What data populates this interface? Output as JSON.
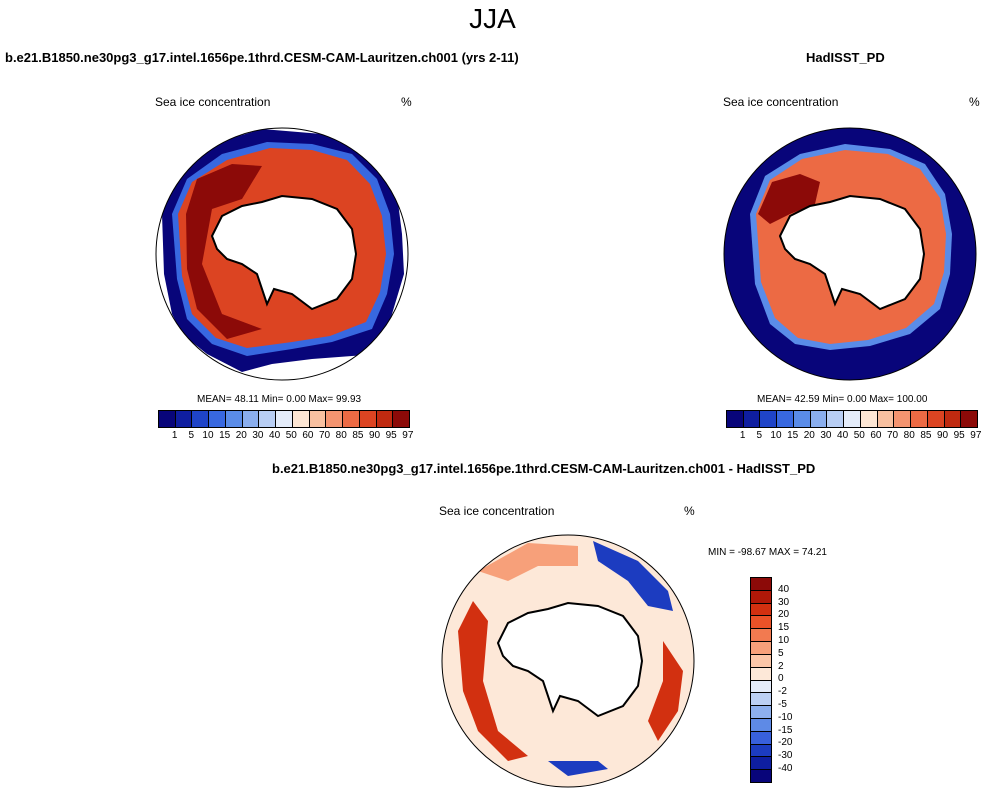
{
  "title": "JJA",
  "panels": {
    "model": {
      "title": "b.e21.B1850.ne30pg3_g17.intel.1656pe.1thrd.CESM-CAM-Lauritzen.ch001 (yrs 2-11)",
      "variable": "Sea ice concentration",
      "units": "%",
      "stats": "MEAN=  48.11  Min=    0.00  Max=  99.93"
    },
    "obs": {
      "title": "HadISST_PD",
      "variable": "Sea ice concentration",
      "units": "%",
      "stats": "MEAN=  42.59  Min=    0.00  Max= 100.00"
    },
    "diff": {
      "title": "b.e21.B1850.ne30pg3_g17.intel.1656pe.1thrd.CESM-CAM-Lauritzen.ch001 - HadISST_PD",
      "variable": "Sea ice concentration",
      "units": "%",
      "stats": "MIN = -98.67 MAX =  74.21"
    }
  },
  "colorbar_abs": {
    "labels": [
      "1",
      "5",
      "10",
      "15",
      "20",
      "30",
      "40",
      "50",
      "60",
      "70",
      "80",
      "85",
      "90",
      "95",
      "97"
    ],
    "colors": [
      "#08057a",
      "#0f1ea0",
      "#1f44c8",
      "#3868e0",
      "#5a8ce8",
      "#8aaeee",
      "#b8cef4",
      "#e4ecfa",
      "#fde6d4",
      "#f8c0a0",
      "#f49470",
      "#ec6a44",
      "#dc4422",
      "#c02a10",
      "#8c0a08"
    ]
  },
  "colorbar_diff": {
    "labels": [
      "40",
      "30",
      "20",
      "15",
      "10",
      "5",
      "2",
      "0",
      "-2",
      "-5",
      "-10",
      "-15",
      "-20",
      "-30",
      "-40"
    ],
    "colors": [
      "#8c0a08",
      "#b01808",
      "#d23010",
      "#ea5228",
      "#f27a50",
      "#f7a07a",
      "#fbc6a8",
      "#fde8d8",
      "#e4ecfa",
      "#bcd0f4",
      "#8eb0ee",
      "#5e8ae6",
      "#3860dc",
      "#1c3cc0",
      "#0e1ea0",
      "#08057a"
    ]
  }
}
